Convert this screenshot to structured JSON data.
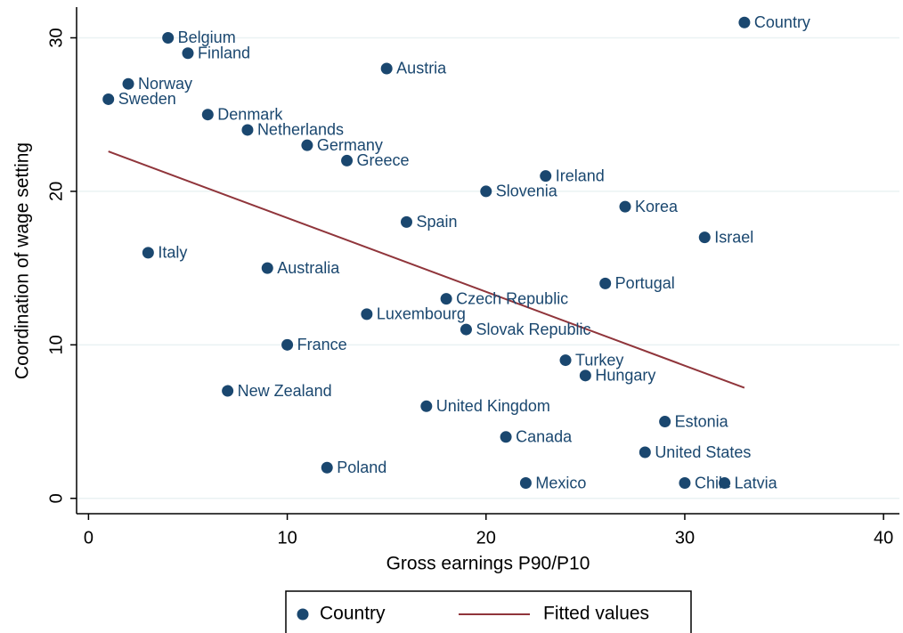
{
  "chart_data": {
    "type": "scatter",
    "x_label": "Gross earnings P90/P10",
    "y_label": "Coordination of wage setting",
    "xlim": [
      -0.6,
      40.8
    ],
    "ylim": [
      -1,
      32
    ],
    "xticks": [
      0,
      10,
      20,
      30,
      40
    ],
    "yticks": [
      0,
      10,
      20,
      30
    ],
    "grid": true,
    "legend": "bottom",
    "series": [
      {
        "name": "Country",
        "color": "#1a476f",
        "marker": "circle",
        "point_labels": [
          "Country",
          "Belgium",
          "Finland",
          "Austria",
          "Norway",
          "Sweden",
          "Denmark",
          "Netherlands",
          "Germany",
          "Greece",
          "Ireland",
          "Slovenia",
          "Korea",
          "Spain",
          "Israel",
          "Italy",
          "Australia",
          "Portugal",
          "Czech Republic",
          "Luxembourg",
          "Slovak Republic",
          "France",
          "Turkey",
          "Hungary",
          "New Zealand",
          "United Kingdom",
          "Estonia",
          "Canada",
          "United States",
          "Poland",
          "Mexico",
          "Chile",
          "Latvia"
        ],
        "x": [
          33,
          4,
          5,
          15,
          2,
          1,
          6,
          8,
          11,
          13,
          23,
          20,
          27,
          16,
          31,
          3,
          9,
          26,
          18,
          14,
          19,
          10,
          24,
          25,
          7,
          17,
          29,
          21,
          28,
          12,
          22,
          30,
          32
        ],
        "values": [
          31,
          30,
          29,
          28,
          27,
          26,
          25,
          24,
          23,
          22,
          21,
          20,
          19,
          18,
          17,
          16,
          15,
          14,
          13,
          12,
          11,
          10,
          9,
          8,
          7,
          6,
          5,
          4,
          3,
          2,
          1,
          1,
          1
        ]
      },
      {
        "name": "Fitted values",
        "color": "#90353b",
        "marker": "line",
        "x": [
          1,
          33
        ],
        "values": [
          22.6,
          7.2
        ]
      }
    ]
  }
}
